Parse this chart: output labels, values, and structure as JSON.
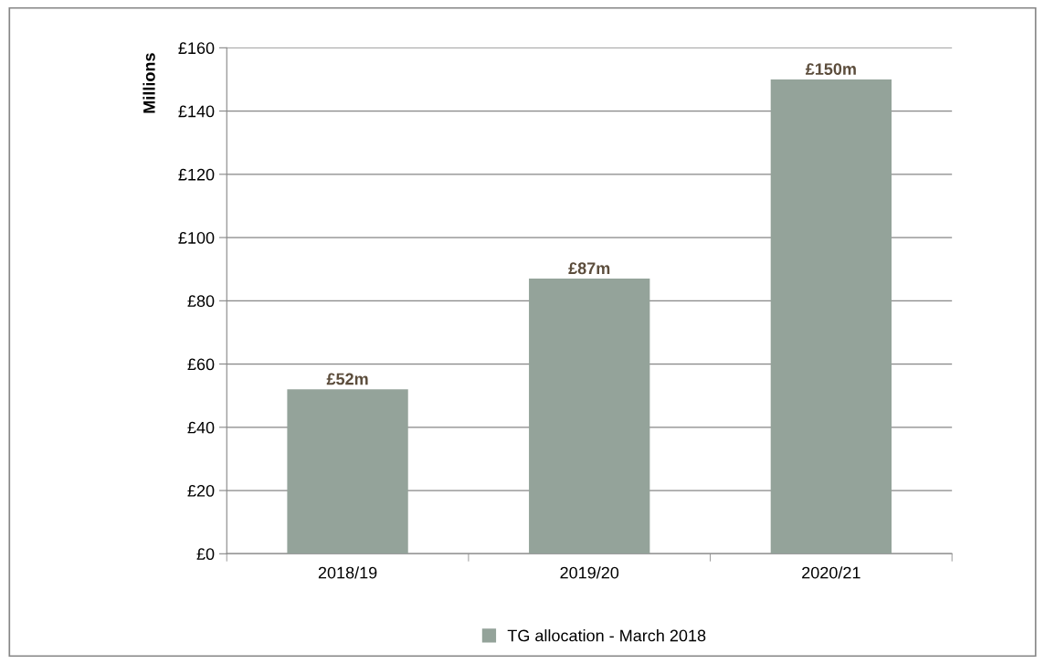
{
  "chart_data": {
    "type": "bar",
    "ylabel": "Millions",
    "categories": [
      "2018/19",
      "2019/20",
      "2020/21"
    ],
    "series": [
      {
        "name": "TG allocation - March 2018",
        "color": "#94a39a",
        "values": [
          52,
          87,
          150
        ],
        "value_labels": [
          "£52m",
          "£87m",
          "£150m"
        ]
      }
    ],
    "ylim": [
      0,
      160
    ],
    "yticks": [
      {
        "value": 0,
        "label": "£0"
      },
      {
        "value": 20,
        "label": "£20"
      },
      {
        "value": 40,
        "label": "£40"
      },
      {
        "value": 60,
        "label": "£60"
      },
      {
        "value": 80,
        "label": "£80"
      },
      {
        "value": 100,
        "label": "£100"
      },
      {
        "value": 120,
        "label": "£120"
      },
      {
        "value": 140,
        "label": "£140"
      },
      {
        "value": 160,
        "label": "£160"
      }
    ],
    "grid": "y",
    "legend": "bottom"
  }
}
